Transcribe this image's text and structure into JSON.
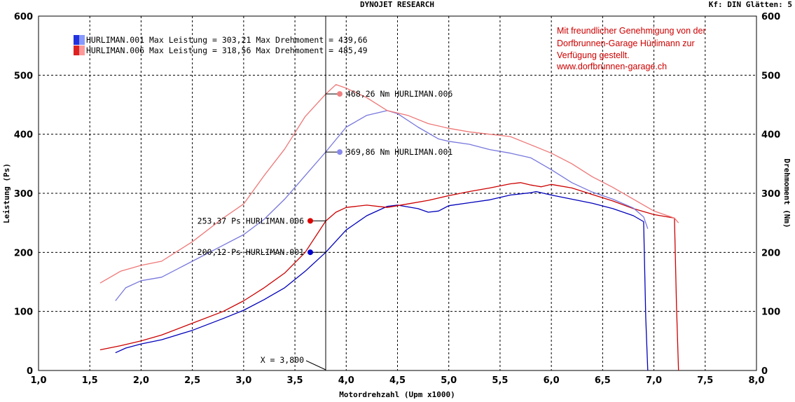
{
  "header": {
    "title": "DYNOJET RESEARCH",
    "settings": "Kf: DIN  Glätten: 5"
  },
  "note": {
    "lines": [
      "Mit freundlicher Genehmigung von der",
      "Dorfbrunnen-Garage Hürlimann zur",
      "Verfügung gestellt.",
      "www.dorfbrunnen-garage.ch"
    ],
    "color": "#cc0000"
  },
  "legend": [
    {
      "text": "HURLIMAN.001 Max Leistung = 303,21 Max Drehmoment = 439,66",
      "color": "#2233dd"
    },
    {
      "text": "HURLIMAN.006 Max Leistung = 318,56 Max Drehmoment = 485,49",
      "color": "#dd2222"
    }
  ],
  "cursor": {
    "x": 3.8,
    "label": "X = 3,800"
  },
  "markers": [
    {
      "text": "468,26 Nm HURLIMAN.006",
      "value": 468.26,
      "axis": "right",
      "color": "#f08080",
      "side": "right"
    },
    {
      "text": "369,86 Nm HURLIMAN.001",
      "value": 369.86,
      "axis": "right",
      "color": "#8888ee",
      "side": "right"
    },
    {
      "text": "253,37 Ps HURLIMAN.006",
      "value": 253.37,
      "axis": "left",
      "color": "#dd0000",
      "side": "left"
    },
    {
      "text": "200,12 Ps HURLIMAN.001",
      "value": 200.12,
      "axis": "left",
      "color": "#0000cc",
      "side": "left"
    }
  ],
  "chart_data": {
    "type": "line",
    "xlabel": "Motordrehzahl (Upm x1000)",
    "ylabel": "Leistung (Ps)",
    "y2label": "Drehmoment (Nm)",
    "xlim": [
      1.0,
      8.0
    ],
    "ylim": [
      0,
      600
    ],
    "y2lim": [
      0,
      600
    ],
    "xticks": [
      "1,0",
      "1,5",
      "2,0",
      "2,5",
      "3,0",
      "3,5",
      "4,0",
      "4,5",
      "5,0",
      "5,5",
      "6,0",
      "6,5",
      "7,0",
      "7,5",
      "8,0"
    ],
    "yticks": [
      "0",
      "100",
      "200",
      "300",
      "400",
      "500",
      "600"
    ],
    "grid": true,
    "legend_position": "top-left",
    "series": [
      {
        "name": "HURLIMAN.001",
        "quantity": "Leistung",
        "axis": "left",
        "color": "#0000bb",
        "x": [
          1.75,
          1.85,
          2.0,
          2.2,
          2.5,
          2.8,
          3.0,
          3.2,
          3.4,
          3.6,
          3.8,
          4.0,
          4.2,
          4.4,
          4.5,
          4.7,
          4.8,
          4.9,
          5.0,
          5.2,
          5.4,
          5.6,
          5.8,
          5.85,
          6.0,
          6.2,
          6.4,
          6.6,
          6.8,
          6.9,
          6.92,
          6.94
        ],
        "y": [
          30,
          38,
          45,
          52,
          68,
          88,
          102,
          120,
          140,
          168,
          200,
          238,
          262,
          278,
          280,
          274,
          268,
          270,
          279,
          284,
          289,
          297,
          301,
          303,
          297,
          290,
          283,
          274,
          262,
          252,
          90,
          0
        ]
      },
      {
        "name": "HURLIMAN.006",
        "quantity": "Leistung",
        "axis": "left",
        "color": "#cc0000",
        "x": [
          1.6,
          1.8,
          2.0,
          2.2,
          2.5,
          2.8,
          3.0,
          3.2,
          3.4,
          3.6,
          3.8,
          3.9,
          4.0,
          4.2,
          4.4,
          4.6,
          4.8,
          5.0,
          5.2,
          5.4,
          5.6,
          5.7,
          5.8,
          5.9,
          6.0,
          6.2,
          6.4,
          6.6,
          6.8,
          7.0,
          7.2,
          7.22,
          7.24
        ],
        "y": [
          35,
          42,
          50,
          60,
          80,
          100,
          118,
          140,
          165,
          200,
          253,
          268,
          276,
          280,
          276,
          282,
          288,
          296,
          303,
          309,
          316,
          318,
          314,
          311,
          315,
          309,
          298,
          287,
          274,
          264,
          258,
          110,
          0
        ]
      },
      {
        "name": "HURLIMAN.001",
        "quantity": "Drehmoment",
        "axis": "right",
        "color": "#7777dd",
        "x": [
          1.75,
          1.85,
          2.0,
          2.2,
          2.5,
          2.8,
          3.0,
          3.2,
          3.4,
          3.6,
          3.8,
          4.0,
          4.2,
          4.4,
          4.5,
          4.7,
          4.9,
          5.0,
          5.2,
          5.4,
          5.6,
          5.8,
          6.0,
          6.2,
          6.4,
          6.6,
          6.8,
          6.9,
          6.94
        ],
        "y": [
          118,
          140,
          152,
          158,
          185,
          212,
          230,
          256,
          290,
          330,
          370,
          412,
          432,
          440,
          435,
          412,
          392,
          388,
          383,
          374,
          368,
          360,
          340,
          318,
          302,
          290,
          275,
          260,
          240
        ]
      },
      {
        "name": "HURLIMAN.006",
        "quantity": "Drehmoment",
        "axis": "right",
        "color": "#ee7777",
        "x": [
          1.6,
          1.8,
          2.0,
          2.2,
          2.5,
          2.8,
          3.0,
          3.2,
          3.4,
          3.6,
          3.8,
          3.9,
          4.0,
          4.2,
          4.4,
          4.6,
          4.8,
          5.0,
          5.2,
          5.4,
          5.6,
          5.8,
          6.0,
          6.2,
          6.4,
          6.6,
          6.8,
          7.0,
          7.2,
          7.24
        ],
        "y": [
          148,
          168,
          178,
          185,
          218,
          258,
          282,
          330,
          375,
          430,
          468,
          484,
          478,
          462,
          440,
          432,
          418,
          410,
          404,
          400,
          396,
          382,
          368,
          350,
          328,
          310,
          290,
          270,
          258,
          250
        ]
      }
    ]
  }
}
